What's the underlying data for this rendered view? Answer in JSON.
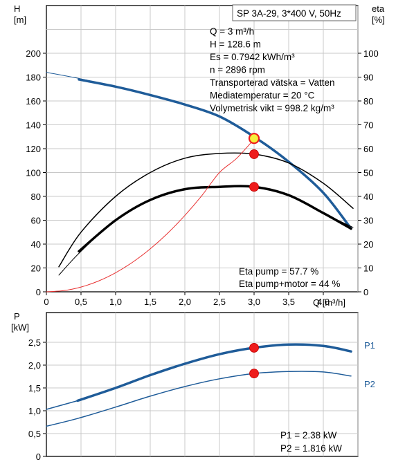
{
  "title": "SP 3A-29, 3*400 V, 50Hz",
  "colors": {
    "head": "#1f5c99",
    "npsh": "#e83030",
    "point": "#ee1c1c",
    "grid": "#c8c8c8",
    "text": "#000000",
    "p_label": "#1f5c99"
  },
  "top_chart": {
    "y_left_label_line1": "H",
    "y_left_label_line2": "[m]",
    "y_right_label_line1": "eta",
    "y_right_label_line2": "[%]",
    "x_label": "Q [m³/h]",
    "left_ticks": [
      "0",
      "20",
      "40",
      "60",
      "80",
      "100",
      "120",
      "140",
      "160",
      "180",
      "200"
    ],
    "right_ticks": [
      "0",
      "10",
      "20",
      "30",
      "40",
      "50",
      "60",
      "70",
      "80",
      "90",
      "100"
    ],
    "x_ticks": [
      "0",
      "0,5",
      "1,0",
      "1,5",
      "2,0",
      "2,5",
      "3,0",
      "3,5",
      "4,0"
    ],
    "info_lines": [
      "Q = 3 m³/h",
      "H = 128.6 m",
      "Es = 0.7942 kWh/m³",
      "n = 2896 rpm",
      "Transporterad vätska = Vatten",
      "Mediatemperatur = 20 °C",
      "Volymetrisk vikt = 998.2 kg/m³"
    ],
    "eta_lines": [
      "Eta pump = 57.7 %",
      "Eta pump+motor = 44 %"
    ]
  },
  "bottom_chart": {
    "y_label_line1": "P",
    "y_label_line2": "[kW]",
    "y_ticks": [
      "0",
      "0,5",
      "1,0",
      "1,5",
      "2,0",
      "2,5"
    ],
    "series_labels": [
      "P1",
      "P2"
    ],
    "values_lines": [
      "P1 = 2.38 kW",
      "P2 = 1.816 kW"
    ]
  },
  "chart_data": [
    {
      "type": "line",
      "xlabel": "Q [m³/h]",
      "ylabel": "H [m]",
      "y2label": "eta [%]",
      "xlim": [
        0,
        4.5
      ],
      "ylim": [
        0,
        200
      ],
      "y2lim": [
        0,
        100
      ],
      "grid": true,
      "series": [
        {
          "axis": "left",
          "style": "thin",
          "x": [
            0,
            0.5,
            1.0,
            1.5,
            2.0,
            2.5,
            3.0,
            3.5,
            4.0,
            4.3,
            4.4
          ],
          "y": [
            184,
            178.5,
            172,
            165,
            157,
            147,
            130,
            109,
            83,
            60,
            53
          ]
        },
        {
          "axis": "left",
          "style": "thick",
          "x": [
            0.47,
            1.0,
            1.5,
            2.0,
            2.5,
            3.0,
            3.5,
            4.0,
            4.4
          ],
          "y": [
            178,
            172,
            165,
            157,
            147,
            130,
            109,
            83,
            53
          ]
        },
        {
          "axis": "right",
          "style": "thin",
          "x": [
            0.18,
            0.5,
            1.0,
            1.5,
            2.0,
            2.5,
            3.0,
            3.5,
            4.0,
            4.43
          ],
          "y": [
            7,
            17,
            30,
            38.5,
            43,
            44,
            44,
            40.5,
            33,
            27
          ]
        },
        {
          "axis": "right",
          "style": "thick",
          "x": [
            0.47,
            1.0,
            1.5,
            2.0,
            2.5,
            3.0,
            3.5,
            4.0,
            4.4
          ],
          "y": [
            17,
            30,
            38.5,
            43,
            44,
            44,
            40.5,
            33,
            26.5
          ]
        },
        {
          "axis": "right",
          "style": "thin",
          "x": [
            0.18,
            0.5,
            1.0,
            1.5,
            2.0,
            2.5,
            3.0,
            3.5,
            4.0,
            4.43
          ],
          "y": [
            10.5,
            25,
            40,
            50,
            56,
            58,
            57.7,
            54,
            45.5,
            35
          ]
        },
        {
          "axis": "right",
          "style": "npsh",
          "x": [
            0,
            0.25,
            0.5,
            0.75,
            1.0,
            1.25,
            1.5,
            1.75,
            2.0,
            2.25,
            2.5,
            2.75,
            3.0
          ],
          "y": [
            0,
            0.5,
            2,
            4.5,
            8,
            12.5,
            18,
            24.5,
            32,
            40.5,
            50,
            56,
            64
          ]
        }
      ],
      "points": [
        {
          "axis": "left",
          "x": 3.0,
          "y": 128.6,
          "type": "operating"
        },
        {
          "axis": "right",
          "x": 3.0,
          "y": 57.7
        },
        {
          "axis": "right",
          "x": 3.0,
          "y": 44
        }
      ]
    },
    {
      "type": "line",
      "xlabel": "Q [m³/h]",
      "ylabel": "P [kW]",
      "xlim": [
        0,
        4.5
      ],
      "ylim": [
        0,
        2.8
      ],
      "grid": true,
      "series": [
        {
          "name": "P1",
          "style": "thin",
          "x": [
            0,
            0.45
          ],
          "y": [
            1.03,
            1.22
          ]
        },
        {
          "name": "P1",
          "style": "thick",
          "x": [
            0.45,
            1.0,
            1.5,
            2.0,
            2.5,
            3.0,
            3.5,
            4.0,
            4.4
          ],
          "y": [
            1.22,
            1.5,
            1.78,
            2.03,
            2.24,
            2.38,
            2.45,
            2.42,
            2.3
          ]
        },
        {
          "name": "P2",
          "style": "thin",
          "x": [
            0,
            0.45,
            1.0,
            1.5,
            2.0,
            2.5,
            3.0,
            3.5,
            4.0,
            4.4
          ],
          "y": [
            0.66,
            0.83,
            1.08,
            1.32,
            1.53,
            1.7,
            1.816,
            1.86,
            1.85,
            1.76
          ]
        }
      ],
      "points": [
        {
          "x": 3.0,
          "y": 2.38
        },
        {
          "x": 3.0,
          "y": 1.816
        }
      ]
    }
  ]
}
